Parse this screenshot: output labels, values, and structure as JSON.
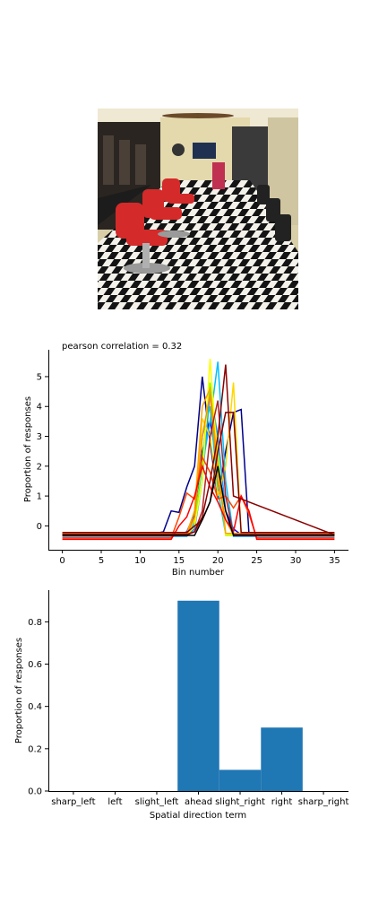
{
  "chart_data": [
    {
      "type": "line",
      "title": "pearson correlation = 0.32",
      "xlabel": "Bin number",
      "ylabel": "Proportion of responses",
      "xlim": [
        -1.8,
        36.8
      ],
      "ylim": [
        -0.8,
        5.9
      ],
      "xticks": [
        0,
        5,
        10,
        15,
        20,
        25,
        30,
        35
      ],
      "yticks": [
        0,
        1,
        2,
        3,
        4,
        5
      ],
      "grid": false,
      "legend": "none",
      "series": [
        {
          "color": "#00008b",
          "x": [
            0,
            12,
            13,
            14,
            15,
            16,
            17,
            18,
            19,
            20,
            21,
            22,
            23,
            24,
            35
          ],
          "y": [
            -0.25,
            -0.25,
            -0.2,
            0.5,
            0.45,
            1.3,
            2.0,
            5.0,
            2.8,
            0.9,
            2.5,
            3.8,
            3.9,
            -0.25,
            -0.25
          ]
        },
        {
          "color": "#0000ff",
          "x": [
            0,
            15,
            16,
            17,
            18,
            19,
            20,
            21,
            22,
            23,
            35
          ],
          "y": [
            -0.3,
            -0.3,
            -0.2,
            0.4,
            2.5,
            3.5,
            2.0,
            0.5,
            -0.1,
            -0.3,
            -0.3
          ]
        },
        {
          "color": "#1e90ff",
          "x": [
            0,
            16,
            17,
            18,
            19,
            20,
            21,
            22,
            35
          ],
          "y": [
            -0.35,
            -0.35,
            -0.1,
            1.5,
            4.5,
            3.0,
            0.5,
            -0.35,
            -0.35
          ]
        },
        {
          "color": "#00bfff",
          "x": [
            0,
            16,
            17,
            18,
            19,
            20,
            21,
            22,
            35
          ],
          "y": [
            -0.3,
            -0.3,
            0.1,
            2.0,
            3.5,
            5.5,
            1.5,
            -0.3,
            -0.3
          ]
        },
        {
          "color": "#00ced1",
          "x": [
            0,
            16,
            17,
            18,
            19,
            20,
            21,
            35
          ],
          "y": [
            -0.28,
            -0.28,
            0.5,
            3.0,
            4.0,
            1.2,
            -0.28,
            -0.28
          ]
        },
        {
          "color": "#7fff00",
          "x": [
            0,
            16,
            17,
            18,
            19,
            20,
            21,
            35
          ],
          "y": [
            -0.32,
            -0.32,
            0.0,
            2.2,
            4.8,
            2.5,
            -0.32,
            -0.32
          ]
        },
        {
          "color": "#ffff00",
          "x": [
            0,
            16,
            17,
            18,
            19,
            20,
            21,
            35
          ],
          "y": [
            -0.3,
            -0.3,
            0.0,
            1.5,
            5.6,
            2.0,
            -0.3,
            -0.3
          ]
        },
        {
          "color": "#ffd700",
          "x": [
            0,
            16,
            17,
            18,
            19,
            20,
            21,
            22,
            23,
            35
          ],
          "y": [
            -0.3,
            -0.3,
            0.2,
            3.6,
            3.0,
            1.0,
            2.0,
            4.8,
            -0.3,
            -0.3
          ]
        },
        {
          "color": "#ffa500",
          "x": [
            0,
            16,
            17,
            18,
            19,
            20,
            21,
            35
          ],
          "y": [
            -0.25,
            -0.25,
            0.5,
            4.0,
            4.6,
            2.0,
            -0.25,
            -0.25
          ]
        },
        {
          "color": "#ff8c00",
          "x": [
            0,
            16,
            17,
            18,
            19,
            20,
            21,
            22,
            35
          ],
          "y": [
            -0.3,
            -0.3,
            0.3,
            3.0,
            4.4,
            1.5,
            0.2,
            -0.3,
            -0.3
          ]
        },
        {
          "color": "#ff4500",
          "x": [
            0,
            14,
            15,
            16,
            17,
            18,
            19,
            20,
            21,
            22,
            23,
            24,
            25,
            35
          ],
          "y": [
            -0.4,
            -0.4,
            0.3,
            1.1,
            0.9,
            2.3,
            1.8,
            0.9,
            1.0,
            0.6,
            1.0,
            0.4,
            -0.4,
            -0.4
          ]
        },
        {
          "color": "#ff0000",
          "x": [
            0,
            14,
            15,
            16,
            17,
            18,
            19,
            20,
            21,
            22,
            23,
            24,
            25,
            35
          ],
          "y": [
            -0.45,
            -0.45,
            0.0,
            0.3,
            1.0,
            2.0,
            1.3,
            0.8,
            0.2,
            -0.2,
            1.0,
            0.5,
            -0.45,
            -0.45
          ]
        },
        {
          "color": "#b22222",
          "x": [
            0,
            16,
            17,
            18,
            19,
            20,
            21,
            22,
            35
          ],
          "y": [
            -0.28,
            -0.28,
            -0.2,
            0.5,
            3.0,
            4.2,
            1.0,
            -0.28,
            -0.28
          ]
        },
        {
          "color": "#8b0000",
          "x": [
            0,
            16,
            17,
            18,
            19,
            20,
            21,
            22,
            35
          ],
          "y": [
            -0.3,
            -0.3,
            -0.2,
            0.3,
            1.5,
            3.0,
            5.4,
            1.0,
            -0.3
          ]
        },
        {
          "color": "#800000",
          "x": [
            0,
            16,
            17,
            18,
            19,
            20,
            21,
            22,
            23,
            35
          ],
          "y": [
            -0.22,
            -0.22,
            0.0,
            0.2,
            0.8,
            2.5,
            3.8,
            3.8,
            -0.22,
            -0.22
          ]
        },
        {
          "color": "#000000",
          "x": [
            0,
            17,
            18,
            19,
            20,
            21,
            22,
            35
          ],
          "y": [
            -0.32,
            -0.32,
            0.2,
            0.8,
            2.0,
            0.5,
            -0.32,
            -0.32
          ]
        }
      ]
    },
    {
      "type": "bar",
      "xlabel": "Spatial direction term",
      "ylabel": "Proportion of responses",
      "categories": [
        "sharp_left",
        "left",
        "slight_left",
        "ahead",
        "slight_right",
        "right",
        "sharp_right"
      ],
      "values": [
        0.0,
        0.0,
        0.0,
        0.9,
        0.1,
        0.3,
        0.0
      ],
      "ylim": [
        0,
        0.95
      ],
      "yticks": [
        "0.0",
        "0.2",
        "0.4",
        "0.6",
        "0.8"
      ],
      "bar_color": "#1f77b4",
      "grid": false
    }
  ]
}
